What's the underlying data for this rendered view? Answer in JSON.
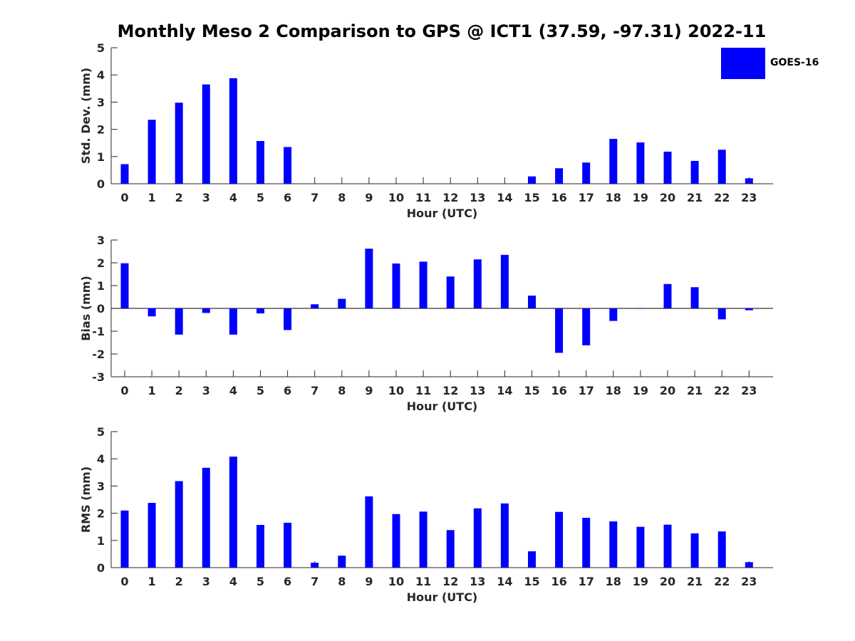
{
  "title": "Monthly Meso 2 Comparison to GPS @ ICT1 (37.59, -97.31) 2022-11",
  "legend": {
    "label": "GOES-16",
    "color": "#0000ff"
  },
  "chart_data": [
    {
      "type": "bar",
      "xlabel": "Hour (UTC)",
      "ylabel": "Std. Dev. (mm)",
      "ylim": [
        0,
        5
      ],
      "yticks": [
        0,
        1,
        2,
        3,
        4,
        5
      ],
      "categories": [
        "0",
        "1",
        "2",
        "3",
        "4",
        "5",
        "6",
        "7",
        "8",
        "9",
        "10",
        "11",
        "12",
        "13",
        "14",
        "15",
        "16",
        "17",
        "18",
        "19",
        "20",
        "21",
        "22",
        "23"
      ],
      "series": [
        {
          "name": "GOES-16",
          "values": [
            0.72,
            2.35,
            2.98,
            3.65,
            3.88,
            1.57,
            1.35,
            0,
            0,
            0,
            0,
            0,
            0,
            0,
            0,
            0.27,
            0.57,
            0.78,
            1.65,
            1.52,
            1.18,
            0.84,
            1.25,
            0.2
          ]
        }
      ]
    },
    {
      "type": "bar",
      "xlabel": "Hour (UTC)",
      "ylabel": "Bias (mm)",
      "ylim": [
        -3,
        3
      ],
      "yticks": [
        -3,
        -2,
        -1,
        0,
        1,
        2,
        3
      ],
      "categories": [
        "0",
        "1",
        "2",
        "3",
        "4",
        "5",
        "6",
        "7",
        "8",
        "9",
        "10",
        "11",
        "12",
        "13",
        "14",
        "15",
        "16",
        "17",
        "18",
        "19",
        "20",
        "21",
        "22",
        "23"
      ],
      "series": [
        {
          "name": "GOES-16",
          "values": [
            1.98,
            -0.35,
            -1.15,
            -0.2,
            -1.15,
            -0.22,
            -0.95,
            0.18,
            0.42,
            2.62,
            1.97,
            2.05,
            1.4,
            2.15,
            2.35,
            0.56,
            -1.95,
            -1.62,
            -0.55,
            -0.02,
            1.07,
            0.93,
            -0.48,
            -0.08
          ]
        }
      ]
    },
    {
      "type": "bar",
      "xlabel": "Hour (UTC)",
      "ylabel": "RMS (mm)",
      "ylim": [
        0,
        5
      ],
      "yticks": [
        0,
        1,
        2,
        3,
        4,
        5
      ],
      "categories": [
        "0",
        "1",
        "2",
        "3",
        "4",
        "5",
        "6",
        "7",
        "8",
        "9",
        "10",
        "11",
        "12",
        "13",
        "14",
        "15",
        "16",
        "17",
        "18",
        "19",
        "20",
        "21",
        "22",
        "23"
      ],
      "series": [
        {
          "name": "GOES-16",
          "values": [
            2.1,
            2.38,
            3.18,
            3.67,
            4.08,
            1.57,
            1.65,
            0.18,
            0.44,
            2.62,
            1.97,
            2.06,
            1.38,
            2.18,
            2.36,
            0.6,
            2.05,
            1.83,
            1.7,
            1.5,
            1.58,
            1.26,
            1.33,
            0.2
          ]
        }
      ]
    }
  ]
}
